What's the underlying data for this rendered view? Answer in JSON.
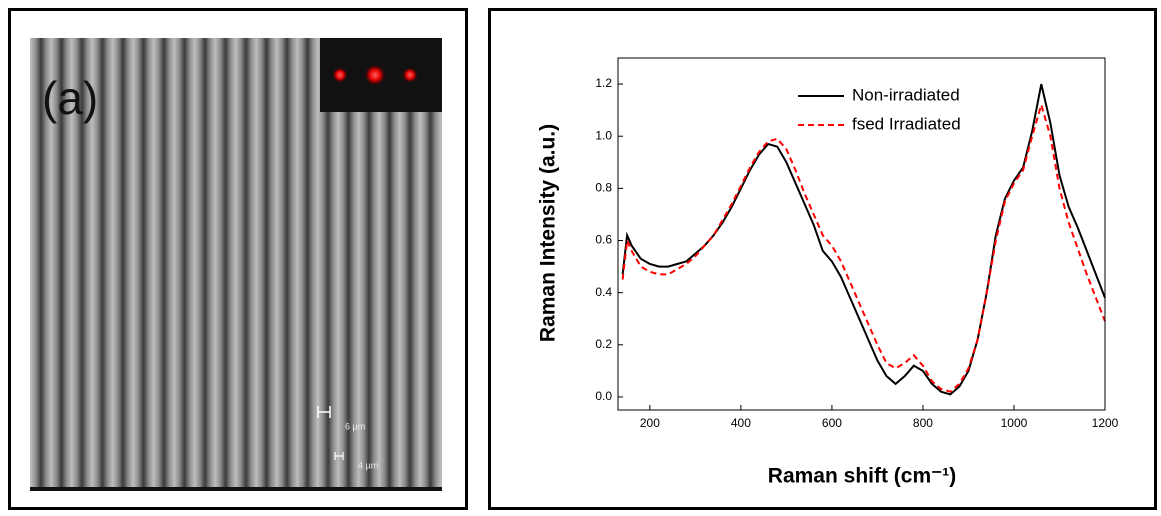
{
  "panel_a": {
    "label": "(a)",
    "scale_bars": [
      "6 µm",
      "4 µm"
    ]
  },
  "chart_data": {
    "type": "line",
    "xlabel": "Raman shift (cm⁻¹)",
    "ylabel": "Raman Intensity (a.u.)",
    "xlim": [
      130,
      1200
    ],
    "xticks": [
      200,
      400,
      600,
      800,
      1000,
      1200
    ],
    "ylim": [
      -0.05,
      1.3
    ],
    "yticks": [
      {
        "value": 0,
        "label": "0.0"
      },
      0.2,
      0.4,
      0.6,
      0.8,
      {
        "value": 1,
        "label": "1.0"
      },
      1.2
    ],
    "legend": "top-right",
    "x": [
      140,
      150,
      160,
      180,
      200,
      220,
      240,
      260,
      280,
      300,
      320,
      340,
      360,
      380,
      400,
      420,
      440,
      460,
      480,
      500,
      520,
      540,
      560,
      580,
      600,
      620,
      640,
      660,
      680,
      700,
      720,
      740,
      760,
      780,
      800,
      820,
      840,
      860,
      880,
      900,
      920,
      940,
      960,
      980,
      1000,
      1020,
      1040,
      1060,
      1080,
      1100,
      1120,
      1140,
      1160,
      1180,
      1200
    ],
    "series": [
      {
        "name": "Non-irradiated",
        "color": "#000000",
        "dash": "solid",
        "values": [
          0.47,
          0.62,
          0.58,
          0.53,
          0.51,
          0.5,
          0.5,
          0.51,
          0.52,
          0.55,
          0.58,
          0.62,
          0.67,
          0.73,
          0.8,
          0.87,
          0.93,
          0.97,
          0.96,
          0.9,
          0.82,
          0.74,
          0.66,
          0.56,
          0.52,
          0.46,
          0.38,
          0.3,
          0.22,
          0.14,
          0.08,
          0.05,
          0.08,
          0.12,
          0.1,
          0.05,
          0.02,
          0.01,
          0.04,
          0.1,
          0.22,
          0.4,
          0.62,
          0.76,
          0.83,
          0.88,
          1.02,
          1.2,
          1.05,
          0.85,
          0.73,
          0.65,
          0.56,
          0.47,
          0.38
        ]
      },
      {
        "name": "fsed Irradiated",
        "color": "#ff0000",
        "dash": "dashed",
        "values": [
          0.45,
          0.6,
          0.56,
          0.5,
          0.48,
          0.47,
          0.47,
          0.49,
          0.51,
          0.54,
          0.58,
          0.62,
          0.68,
          0.74,
          0.81,
          0.88,
          0.94,
          0.98,
          0.99,
          0.95,
          0.87,
          0.78,
          0.7,
          0.62,
          0.58,
          0.52,
          0.44,
          0.36,
          0.28,
          0.2,
          0.13,
          0.11,
          0.13,
          0.16,
          0.12,
          0.06,
          0.03,
          0.02,
          0.05,
          0.11,
          0.22,
          0.4,
          0.6,
          0.75,
          0.82,
          0.87,
          1.0,
          1.12,
          1.0,
          0.8,
          0.67,
          0.57,
          0.47,
          0.38,
          0.29
        ]
      }
    ]
  }
}
